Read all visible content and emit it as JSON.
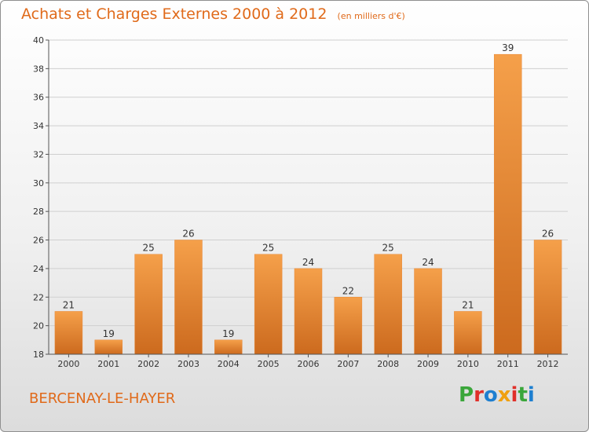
{
  "header": {
    "title": "Achats et Charges Externes 2000 à 2012",
    "subtitle": "(en milliers d'€)"
  },
  "footer": {
    "commune": "BERCENAY-LE-HAYER",
    "brand": "Proxiti",
    "brand_colors": [
      "#3aa63a",
      "#e0302a",
      "#1e7fd0",
      "#f0a010",
      "#e0302a",
      "#3aa63a",
      "#1e7fd0"
    ]
  },
  "colors": {
    "accent": "#e06a1a",
    "bar_top": "#f5a04a",
    "bar_bottom": "#cc6a1e",
    "grid": "#cfcfcf",
    "axis": "#555555"
  },
  "chart_data": {
    "type": "bar",
    "title": "Achats et Charges Externes 2000 à 2012",
    "subtitle": "(en milliers d'€)",
    "xlabel": "",
    "ylabel": "",
    "categories": [
      "2000",
      "2001",
      "2002",
      "2003",
      "2004",
      "2005",
      "2006",
      "2007",
      "2008",
      "2009",
      "2010",
      "2011",
      "2012"
    ],
    "values": [
      21,
      19,
      25,
      26,
      19,
      25,
      24,
      22,
      25,
      24,
      21,
      39,
      26
    ],
    "ylim": [
      18,
      40
    ],
    "yticks": [
      18,
      20,
      22,
      24,
      26,
      28,
      30,
      32,
      34,
      36,
      38,
      40
    ],
    "grid": true,
    "legend": "none"
  }
}
